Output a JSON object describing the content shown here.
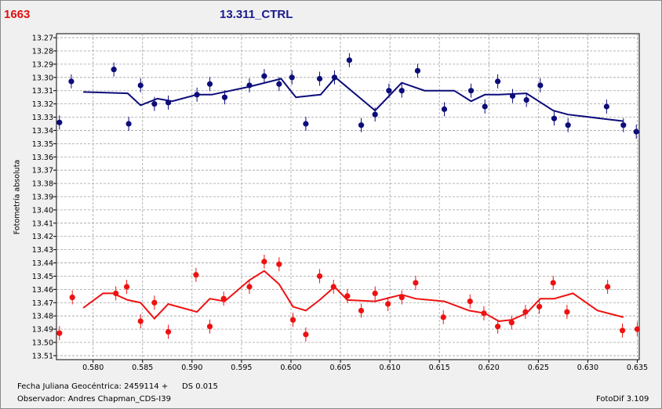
{
  "header": {
    "object_id": "1663",
    "title": "13.311_CTRL"
  },
  "footer": {
    "jd_label": "Fecha Juliana Geocéntrica: 2459114 +",
    "ds_label": "DS 0.015",
    "observer": "Observador: Andres Chapman_CDS-I39",
    "software": "FotoDif 3.109"
  },
  "chart_data": {
    "type": "scatter",
    "title": "13.311_CTRL",
    "ylabel": "Fotometría absoluta",
    "xlabel": "",
    "xlim": [
      0.5763,
      0.6352
    ],
    "ylim": [
      13.513,
      13.267
    ],
    "y_inverted": true,
    "grid": true,
    "x_ticks": [
      "0.580",
      "0.585",
      "0.590",
      "0.595",
      "0.600",
      "0.605",
      "0.610",
      "0.615",
      "0.620",
      "0.625",
      "0.630",
      "0.635"
    ],
    "y_ticks": [
      "13.27",
      "13.28",
      "13.29",
      "13.30",
      "13.31",
      "13.32",
      "13.33",
      "13.34",
      "13.35",
      "13.36",
      "13.37",
      "13.38",
      "13.39",
      "13.40",
      "13.41",
      "13.42",
      "13.43",
      "13.44",
      "13.45",
      "13.46",
      "13.47",
      "13.48",
      "13.49",
      "13.50",
      "13.51"
    ],
    "colors": {
      "series_blue": "#0c0c7a",
      "series_red": "#ee1111",
      "grid": "#a0a0a0"
    },
    "series": [
      {
        "color": "#0c0c7a",
        "points": [
          {
            "x": 0.5766,
            "y": 13.334
          },
          {
            "x": 0.5778,
            "y": 13.303
          },
          {
            "x": 0.5821,
            "y": 13.294
          },
          {
            "x": 0.5836,
            "y": 13.335
          },
          {
            "x": 0.5848,
            "y": 13.306
          },
          {
            "x": 0.5862,
            "y": 13.32
          },
          {
            "x": 0.5876,
            "y": 13.319
          },
          {
            "x": 0.5905,
            "y": 13.313
          },
          {
            "x": 0.5918,
            "y": 13.305
          },
          {
            "x": 0.5933,
            "y": 13.315
          },
          {
            "x": 0.5958,
            "y": 13.306
          },
          {
            "x": 0.5973,
            "y": 13.299
          },
          {
            "x": 0.5988,
            "y": 13.305
          },
          {
            "x": 0.6001,
            "y": 13.3
          },
          {
            "x": 0.6015,
            "y": 13.335
          },
          {
            "x": 0.6029,
            "y": 13.301
          },
          {
            "x": 0.6044,
            "y": 13.3
          },
          {
            "x": 0.6059,
            "y": 13.287
          },
          {
            "x": 0.6071,
            "y": 13.336
          },
          {
            "x": 0.6085,
            "y": 13.328
          },
          {
            "x": 0.6099,
            "y": 13.31
          },
          {
            "x": 0.6112,
            "y": 13.31
          },
          {
            "x": 0.6128,
            "y": 13.295
          },
          {
            "x": 0.6155,
            "y": 13.324
          },
          {
            "x": 0.6182,
            "y": 13.31
          },
          {
            "x": 0.6196,
            "y": 13.322
          },
          {
            "x": 0.6209,
            "y": 13.303
          },
          {
            "x": 0.6224,
            "y": 13.314
          },
          {
            "x": 0.6238,
            "y": 13.317
          },
          {
            "x": 0.6252,
            "y": 13.306
          },
          {
            "x": 0.6266,
            "y": 13.331
          },
          {
            "x": 0.628,
            "y": 13.336
          },
          {
            "x": 0.6319,
            "y": 13.322
          },
          {
            "x": 0.6336,
            "y": 13.336
          },
          {
            "x": 0.6349,
            "y": 13.341
          }
        ],
        "trend": [
          {
            "x": 0.579,
            "y": 13.311
          },
          {
            "x": 0.5835,
            "y": 13.312
          },
          {
            "x": 0.5848,
            "y": 13.321
          },
          {
            "x": 0.5865,
            "y": 13.316
          },
          {
            "x": 0.588,
            "y": 13.318
          },
          {
            "x": 0.5905,
            "y": 13.313
          },
          {
            "x": 0.592,
            "y": 13.313
          },
          {
            "x": 0.5958,
            "y": 13.307
          },
          {
            "x": 0.599,
            "y": 13.301
          },
          {
            "x": 0.6005,
            "y": 13.315
          },
          {
            "x": 0.603,
            "y": 13.313
          },
          {
            "x": 0.6045,
            "y": 13.3
          },
          {
            "x": 0.6085,
            "y": 13.325
          },
          {
            "x": 0.6112,
            "y": 13.304
          },
          {
            "x": 0.6135,
            "y": 13.31
          },
          {
            "x": 0.6165,
            "y": 13.31
          },
          {
            "x": 0.6182,
            "y": 13.318
          },
          {
            "x": 0.6196,
            "y": 13.313
          },
          {
            "x": 0.621,
            "y": 13.313
          },
          {
            "x": 0.6238,
            "y": 13.312
          },
          {
            "x": 0.6265,
            "y": 13.325
          },
          {
            "x": 0.628,
            "y": 13.328
          },
          {
            "x": 0.6336,
            "y": 13.333
          }
        ]
      },
      {
        "color": "#ee1111",
        "points": [
          {
            "x": 0.5766,
            "y": 13.493
          },
          {
            "x": 0.5779,
            "y": 13.466
          },
          {
            "x": 0.5823,
            "y": 13.463
          },
          {
            "x": 0.5834,
            "y": 13.458
          },
          {
            "x": 0.5848,
            "y": 13.484
          },
          {
            "x": 0.5862,
            "y": 13.47
          },
          {
            "x": 0.5876,
            "y": 13.492
          },
          {
            "x": 0.5904,
            "y": 13.449
          },
          {
            "x": 0.5918,
            "y": 13.488
          },
          {
            "x": 0.5932,
            "y": 13.467
          },
          {
            "x": 0.5958,
            "y": 13.458
          },
          {
            "x": 0.5973,
            "y": 13.439
          },
          {
            "x": 0.5988,
            "y": 13.441
          },
          {
            "x": 0.6002,
            "y": 13.483
          },
          {
            "x": 0.6015,
            "y": 13.494
          },
          {
            "x": 0.6029,
            "y": 13.45
          },
          {
            "x": 0.6043,
            "y": 13.458
          },
          {
            "x": 0.6057,
            "y": 13.465
          },
          {
            "x": 0.6071,
            "y": 13.476
          },
          {
            "x": 0.6085,
            "y": 13.463
          },
          {
            "x": 0.6098,
            "y": 13.471
          },
          {
            "x": 0.6112,
            "y": 13.466
          },
          {
            "x": 0.6126,
            "y": 13.455
          },
          {
            "x": 0.6154,
            "y": 13.481
          },
          {
            "x": 0.6181,
            "y": 13.469
          },
          {
            "x": 0.6195,
            "y": 13.478
          },
          {
            "x": 0.6209,
            "y": 13.488
          },
          {
            "x": 0.6223,
            "y": 13.485
          },
          {
            "x": 0.6237,
            "y": 13.477
          },
          {
            "x": 0.6251,
            "y": 13.473
          },
          {
            "x": 0.6265,
            "y": 13.455
          },
          {
            "x": 0.6279,
            "y": 13.477
          },
          {
            "x": 0.632,
            "y": 13.458
          },
          {
            "x": 0.6335,
            "y": 13.491
          },
          {
            "x": 0.635,
            "y": 13.49
          }
        ],
        "trend": [
          {
            "x": 0.579,
            "y": 13.474
          },
          {
            "x": 0.581,
            "y": 13.463
          },
          {
            "x": 0.582,
            "y": 13.463
          },
          {
            "x": 0.5835,
            "y": 13.468
          },
          {
            "x": 0.5848,
            "y": 13.47
          },
          {
            "x": 0.5862,
            "y": 13.482
          },
          {
            "x": 0.5876,
            "y": 13.471
          },
          {
            "x": 0.5905,
            "y": 13.477
          },
          {
            "x": 0.5918,
            "y": 13.467
          },
          {
            "x": 0.5933,
            "y": 13.469
          },
          {
            "x": 0.5958,
            "y": 13.453
          },
          {
            "x": 0.5973,
            "y": 13.446
          },
          {
            "x": 0.5988,
            "y": 13.456
          },
          {
            "x": 0.6002,
            "y": 13.473
          },
          {
            "x": 0.6015,
            "y": 13.476
          },
          {
            "x": 0.6029,
            "y": 13.468
          },
          {
            "x": 0.6044,
            "y": 13.458
          },
          {
            "x": 0.6057,
            "y": 13.468
          },
          {
            "x": 0.6085,
            "y": 13.469
          },
          {
            "x": 0.6112,
            "y": 13.464
          },
          {
            "x": 0.6126,
            "y": 13.467
          },
          {
            "x": 0.6155,
            "y": 13.469
          },
          {
            "x": 0.618,
            "y": 13.476
          },
          {
            "x": 0.6196,
            "y": 13.478
          },
          {
            "x": 0.621,
            "y": 13.484
          },
          {
            "x": 0.6223,
            "y": 13.483
          },
          {
            "x": 0.6238,
            "y": 13.478
          },
          {
            "x": 0.6252,
            "y": 13.467
          },
          {
            "x": 0.6266,
            "y": 13.467
          },
          {
            "x": 0.6285,
            "y": 13.463
          },
          {
            "x": 0.631,
            "y": 13.476
          },
          {
            "x": 0.6336,
            "y": 13.481
          }
        ]
      }
    ]
  }
}
